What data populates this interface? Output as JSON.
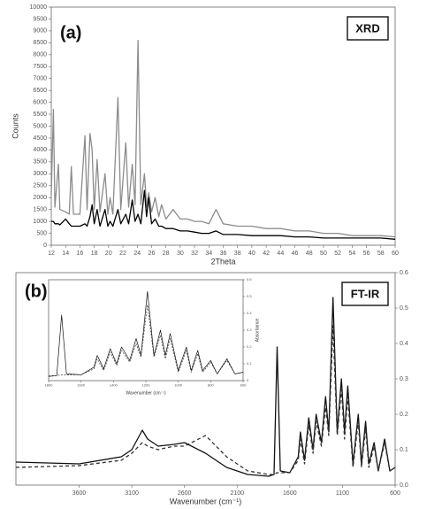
{
  "chart_data": [
    {
      "type": "line",
      "panel": "(a)",
      "annotation": "XRD",
      "xlabel": "2Theta",
      "ylabel": "Counts",
      "xlim": [
        12,
        60
      ],
      "ylim": [
        0,
        10000
      ],
      "xticks": [
        12,
        14,
        16,
        18,
        20,
        22,
        24,
        26,
        28,
        30,
        32,
        34,
        36,
        38,
        40,
        42,
        44,
        46,
        48,
        50,
        52,
        54,
        56,
        58,
        60
      ],
      "yticks": [
        0,
        500,
        1000,
        1500,
        2000,
        2500,
        3000,
        3500,
        4000,
        4500,
        5000,
        5500,
        6000,
        6500,
        7000,
        7500,
        8000,
        8500,
        9000,
        9500,
        10000
      ],
      "x": [
        12,
        12.3,
        12.5,
        13,
        13.2,
        14,
        14.5,
        14.8,
        15.1,
        16,
        16.7,
        17,
        17.4,
        17.7,
        18,
        18.4,
        18.8,
        19.5,
        19.9,
        20.2,
        20.6,
        21.3,
        21.7,
        22.4,
        22.8,
        23.3,
        23.7,
        24.1,
        24.5,
        25,
        25.3,
        25.6,
        26,
        26.5,
        27,
        27.4,
        28,
        29,
        30,
        31,
        32,
        33,
        34,
        35,
        36,
        38,
        40,
        42,
        44,
        46,
        48,
        50,
        52,
        54,
        56,
        58,
        60
      ],
      "series": [
        {
          "color": "#8c8c8c",
          "style": "solid",
          "values": [
            2100,
            5700,
            1600,
            3400,
            1500,
            1400,
            1300,
            3300,
            1300,
            1300,
            4600,
            1500,
            4700,
            4000,
            1500,
            3600,
            1400,
            3000,
            1300,
            2000,
            1300,
            6200,
            1500,
            4300,
            1600,
            3400,
            1700,
            8600,
            1700,
            3000,
            1600,
            2200,
            1400,
            2000,
            1200,
            1700,
            1100,
            1500,
            1100,
            1100,
            1000,
            1000,
            900,
            1500,
            900,
            800,
            800,
            700,
            700,
            600,
            600,
            500,
            500,
            400,
            400,
            400,
            350
          ]
        },
        {
          "color": "#000000",
          "style": "solid",
          "values": [
            1000,
            1000,
            900,
            900,
            850,
            1100,
            900,
            800,
            800,
            800,
            900,
            800,
            1200,
            1700,
            900,
            1500,
            800,
            1500,
            800,
            1000,
            800,
            1500,
            900,
            1300,
            900,
            1900,
            1000,
            1300,
            900,
            2300,
            1200,
            2000,
            900,
            1100,
            800,
            800,
            700,
            700,
            600,
            600,
            550,
            500,
            500,
            600,
            450,
            450,
            400,
            400,
            400,
            350,
            350,
            300,
            300,
            300,
            300,
            300,
            250
          ]
        }
      ]
    },
    {
      "type": "line",
      "panel": "(b)",
      "annotation": "FT-IR",
      "xlabel": "Wavenumber (cm⁻¹)",
      "y_axis_side": "right",
      "xlim": [
        4200,
        600
      ],
      "ylim": [
        0,
        0.6
      ],
      "xticks": [
        3600,
        3100,
        2600,
        2100,
        1600,
        1100,
        600
      ],
      "yticks": [
        {
          "value": 0,
          "label": "0.0"
        },
        0.1,
        0.2,
        0.3,
        0.4,
        0.5,
        0.6
      ],
      "x": [
        4200,
        3600,
        3200,
        3100,
        3000,
        2950,
        2850,
        2700,
        2600,
        2400,
        2200,
        2000,
        1800,
        1750,
        1720,
        1690,
        1600,
        1520,
        1500,
        1460,
        1420,
        1380,
        1350,
        1300,
        1260,
        1230,
        1190,
        1150,
        1110,
        1080,
        1050,
        1000,
        950,
        920,
        880,
        850,
        800,
        760,
        700,
        650,
        600
      ],
      "series": [
        {
          "color": "#111111",
          "style": "solid",
          "values": [
            0.065,
            0.06,
            0.08,
            0.1,
            0.155,
            0.13,
            0.11,
            0.115,
            0.12,
            0.09,
            0.05,
            0.03,
            0.025,
            0.03,
            0.39,
            0.04,
            0.035,
            0.08,
            0.15,
            0.07,
            0.19,
            0.1,
            0.2,
            0.12,
            0.25,
            0.15,
            0.53,
            0.15,
            0.3,
            0.15,
            0.28,
            0.06,
            0.2,
            0.06,
            0.18,
            0.06,
            0.12,
            0.04,
            0.13,
            0.04,
            0.05
          ]
        },
        {
          "color": "#333333",
          "style": "dashed",
          "values": [
            0.05,
            0.055,
            0.07,
            0.09,
            0.12,
            0.11,
            0.1,
            0.11,
            0.11,
            0.14,
            0.08,
            0.04,
            0.03,
            0.03,
            0.035,
            0.035,
            0.035,
            0.07,
            0.13,
            0.06,
            0.17,
            0.09,
            0.18,
            0.11,
            0.22,
            0.14,
            0.45,
            0.14,
            0.27,
            0.13,
            0.25,
            0.05,
            0.18,
            0.05,
            0.16,
            0.05,
            0.11,
            0.04,
            0.12,
            0.04,
            0.05
          ]
        }
      ]
    },
    {
      "type": "line",
      "xlabel": "Wavenumber (cm⁻¹)",
      "ylabel": "Absorbance",
      "y_axis_side": "right",
      "xlim": [
        1800,
        600
      ],
      "ylim": [
        0,
        0.6
      ],
      "xticks": [
        1800,
        1600,
        1400,
        1200,
        1000,
        800,
        600
      ],
      "yticks": [
        0,
        0.1,
        0.2,
        0.3,
        0.4,
        0.5,
        0.6
      ],
      "x": [
        1800,
        1750,
        1720,
        1690,
        1600,
        1520,
        1500,
        1460,
        1420,
        1380,
        1350,
        1300,
        1260,
        1230,
        1190,
        1150,
        1110,
        1080,
        1050,
        1000,
        950,
        920,
        880,
        850,
        800,
        760,
        700,
        650,
        600
      ],
      "series": [
        {
          "color": "#111111",
          "style": "solid",
          "values": [
            0.025,
            0.03,
            0.39,
            0.04,
            0.035,
            0.08,
            0.15,
            0.07,
            0.19,
            0.1,
            0.2,
            0.12,
            0.25,
            0.15,
            0.53,
            0.15,
            0.3,
            0.15,
            0.28,
            0.06,
            0.2,
            0.06,
            0.18,
            0.06,
            0.12,
            0.04,
            0.13,
            0.04,
            0.05
          ]
        },
        {
          "color": "#333333",
          "style": "dashed",
          "values": [
            0.03,
            0.03,
            0.035,
            0.035,
            0.035,
            0.07,
            0.13,
            0.06,
            0.17,
            0.09,
            0.18,
            0.11,
            0.22,
            0.14,
            0.45,
            0.14,
            0.27,
            0.13,
            0.25,
            0.05,
            0.18,
            0.05,
            0.16,
            0.05,
            0.11,
            0.04,
            0.12,
            0.04,
            0.05
          ]
        }
      ]
    }
  ]
}
